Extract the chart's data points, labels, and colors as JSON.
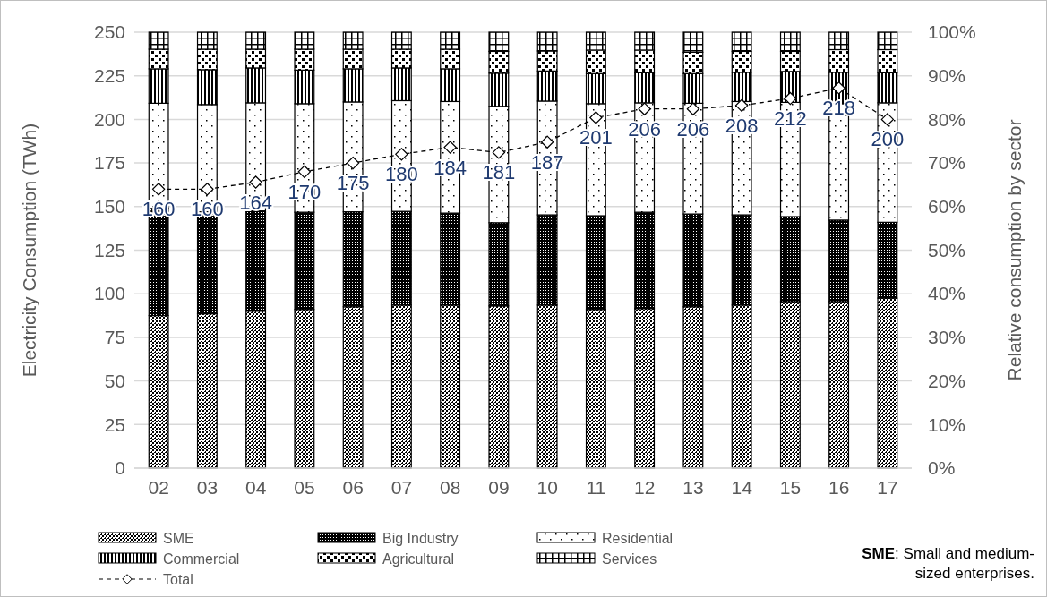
{
  "chart_data": {
    "type": "bar",
    "stacked": true,
    "categories": [
      "02",
      "03",
      "04",
      "05",
      "06",
      "07",
      "08",
      "09",
      "10",
      "11",
      "12",
      "13",
      "14",
      "15",
      "16",
      "17"
    ],
    "series": [
      {
        "name": "SME",
        "color": "#000000",
        "axis": "y2",
        "values": [
          35.0,
          35.4,
          36.0,
          36.4,
          37.0,
          37.4,
          37.4,
          37.2,
          37.4,
          36.4,
          36.6,
          37.0,
          37.4,
          38.2,
          38.2,
          39.0
        ]
      },
      {
        "name": "Big Industry",
        "color": "#000000",
        "axis": "y2",
        "values": [
          24.6,
          23.4,
          23.0,
          22.3,
          21.8,
          21.5,
          21.1,
          19.1,
          20.7,
          21.5,
          22.1,
          21.3,
          20.7,
          19.5,
          18.7,
          17.4
        ]
      },
      {
        "name": "Residential",
        "color": "#000000",
        "axis": "y2",
        "values": [
          24.1,
          24.6,
          24.8,
          24.9,
          25.2,
          25.4,
          25.6,
          26.7,
          26.1,
          25.7,
          25.1,
          25.4,
          26.0,
          26.2,
          26.7,
          27.4
        ]
      },
      {
        "name": "Commercial",
        "color": "#000000",
        "axis": "y2",
        "values": [
          7.9,
          8.0,
          8.0,
          7.7,
          7.6,
          7.5,
          7.5,
          7.6,
          6.9,
          6.9,
          6.9,
          6.8,
          6.7,
          7.1,
          7.2,
          6.9
        ]
      },
      {
        "name": "Agricultural",
        "color": "#000000",
        "axis": "y2",
        "values": [
          4.5,
          4.7,
          4.3,
          4.8,
          4.5,
          4.3,
          4.5,
          5.0,
          4.6,
          5.4,
          5.2,
          4.9,
          4.8,
          4.6,
          5.2,
          5.3
        ]
      },
      {
        "name": "Services",
        "color": "#000000",
        "axis": "y2",
        "values": [
          3.9,
          3.9,
          3.9,
          3.9,
          3.9,
          3.9,
          3.9,
          4.4,
          4.3,
          4.1,
          4.1,
          4.6,
          4.4,
          4.4,
          4.0,
          4.0
        ]
      },
      {
        "name": "Total",
        "type": "line",
        "color": "#000000",
        "axis": "y",
        "marker": "diamond",
        "line_style": "dashed",
        "values": [
          160,
          160,
          164,
          170,
          175,
          180,
          184,
          181,
          187,
          201,
          206,
          206,
          208,
          212,
          218,
          200
        ],
        "value_labels": [
          "160",
          "160",
          "164",
          "170",
          "175",
          "180",
          "184",
          "181",
          "187",
          "201",
          "206",
          "206",
          "208",
          "212",
          "218",
          "200"
        ]
      }
    ],
    "ylabel": "Electricity Consumption (TWh)",
    "y2label": "Relative consumption by sector",
    "ylim": [
      0,
      250
    ],
    "yticks": [
      0,
      25,
      50,
      75,
      100,
      125,
      150,
      175,
      200,
      225,
      250
    ],
    "y2lim": [
      0,
      100
    ],
    "y2ticks": [
      {
        "value": 0,
        "label": "0%"
      },
      {
        "value": 10,
        "label": "10%"
      },
      {
        "value": 20,
        "label": "20%"
      },
      {
        "value": 30,
        "label": "30%"
      },
      {
        "value": 40,
        "label": "40%"
      },
      {
        "value": 50,
        "label": "50%"
      },
      {
        "value": 60,
        "label": "60%"
      },
      {
        "value": 70,
        "label": "70%"
      },
      {
        "value": 80,
        "label": "80%"
      },
      {
        "value": 90,
        "label": "90%"
      },
      {
        "value": 100,
        "label": "100%"
      }
    ],
    "grid": "y",
    "legend": "bottom",
    "annotations": [
      "SME: Small and medium-sized enterprises."
    ]
  }
}
